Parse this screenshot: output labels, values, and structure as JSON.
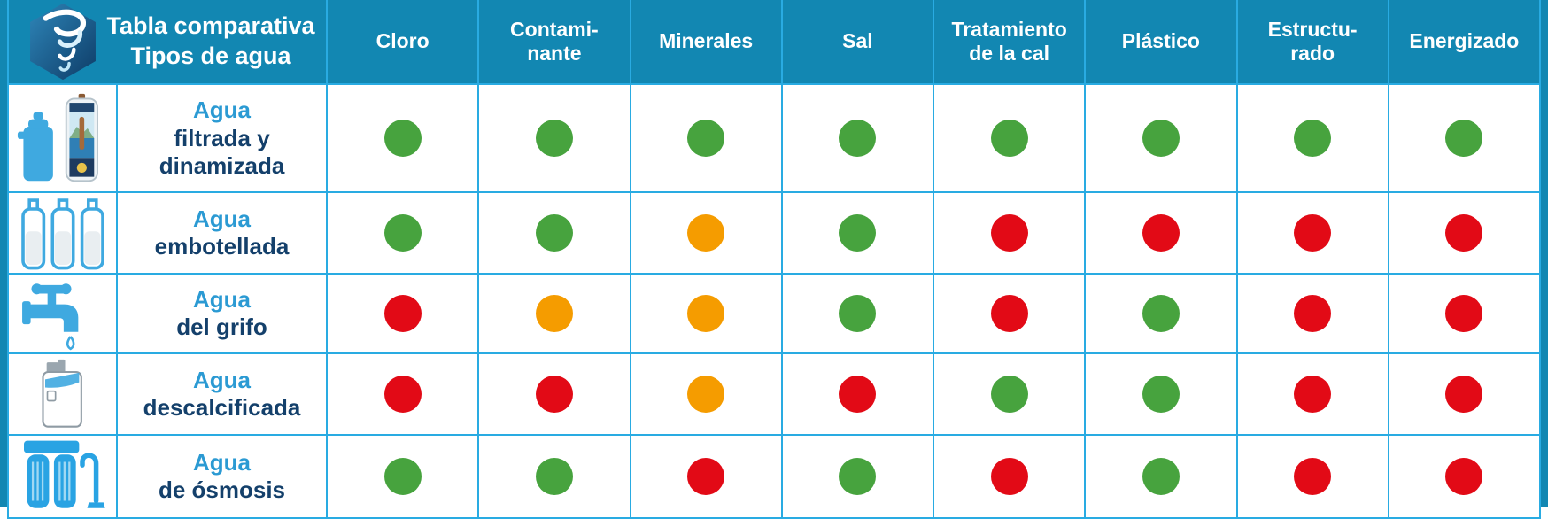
{
  "colors": {
    "header_bg": "#1287b2",
    "grid_line": "#29abe2",
    "green": "#47a33e",
    "orange": "#f59c00",
    "red": "#e20a16",
    "label_accent": "#2b9ad3",
    "label_dark": "#14406b",
    "icon_blue": "#3fa9e0"
  },
  "header": {
    "logo_icon": "water-vortex-logo",
    "title_lines": [
      "Tabla comparativa",
      "Tipos de agua"
    ],
    "columns": [
      {
        "label_lines": [
          "Cloro"
        ]
      },
      {
        "label_lines": [
          "Contami-",
          "nante"
        ]
      },
      {
        "label_lines": [
          "Minerales"
        ]
      },
      {
        "label_lines": [
          "Sal"
        ]
      },
      {
        "label_lines": [
          "Tratamiento",
          "de la cal"
        ]
      },
      {
        "label_lines": [
          "Plástico"
        ]
      },
      {
        "label_lines": [
          "Estructu-",
          "rado"
        ]
      },
      {
        "label_lines": [
          "Energizado"
        ]
      }
    ]
  },
  "rows": [
    {
      "icon": "filtered-dynamized-water-icon",
      "label_accent": "Agua",
      "label_bold_lines": [
        "filtrada y",
        "dinamizada"
      ],
      "dots": [
        "green",
        "green",
        "green",
        "green",
        "green",
        "green",
        "green",
        "green"
      ]
    },
    {
      "icon": "bottled-water-icon",
      "label_accent": "Agua",
      "label_bold_lines": [
        "embotellada"
      ],
      "dots": [
        "green",
        "green",
        "orange",
        "green",
        "red",
        "red",
        "red",
        "red"
      ]
    },
    {
      "icon": "tap-water-icon",
      "label_accent": "Agua",
      "label_bold_lines": [
        "del grifo"
      ],
      "dots": [
        "red",
        "orange",
        "orange",
        "green",
        "red",
        "green",
        "red",
        "red"
      ]
    },
    {
      "icon": "softened-water-icon",
      "label_accent": "Agua",
      "label_bold_lines": [
        "descalcificada"
      ],
      "dots": [
        "red",
        "red",
        "orange",
        "red",
        "green",
        "green",
        "red",
        "red"
      ]
    },
    {
      "icon": "osmosis-water-icon",
      "label_accent": "Agua",
      "label_bold_lines": [
        "de ósmosis"
      ],
      "dots": [
        "green",
        "green",
        "red",
        "green",
        "red",
        "green",
        "red",
        "red"
      ]
    }
  ],
  "chart_data": {
    "type": "table",
    "title": "Tabla comparativa Tipos de agua",
    "columns": [
      "Cloro",
      "Contaminante",
      "Minerales",
      "Sal",
      "Tratamiento de la cal",
      "Plástico",
      "Estructurado",
      "Energizado"
    ],
    "rows": [
      {
        "name": "Agua filtrada y dinamizada",
        "values": [
          "green",
          "green",
          "green",
          "green",
          "green",
          "green",
          "green",
          "green"
        ]
      },
      {
        "name": "Agua embotellada",
        "values": [
          "green",
          "green",
          "orange",
          "green",
          "red",
          "red",
          "red",
          "red"
        ]
      },
      {
        "name": "Agua del grifo",
        "values": [
          "red",
          "orange",
          "orange",
          "green",
          "red",
          "green",
          "red",
          "red"
        ]
      },
      {
        "name": "Agua descalcificada",
        "values": [
          "red",
          "red",
          "orange",
          "red",
          "green",
          "green",
          "red",
          "red"
        ]
      },
      {
        "name": "Agua de ósmosis",
        "values": [
          "green",
          "green",
          "red",
          "green",
          "red",
          "green",
          "red",
          "red"
        ]
      }
    ],
    "value_colors": {
      "green": "#47a33e",
      "orange": "#f59c00",
      "red": "#e20a16"
    },
    "legend_position": "none",
    "grid": true
  }
}
